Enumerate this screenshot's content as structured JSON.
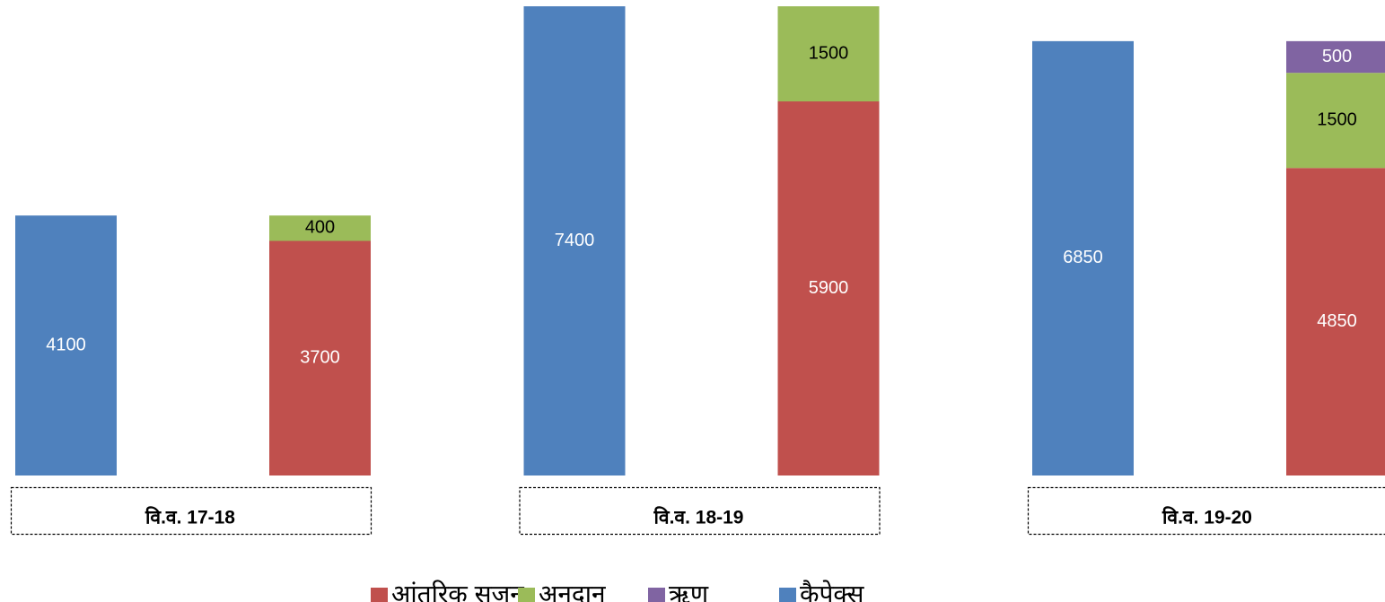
{
  "chart_data": {
    "type": "bar",
    "categories": [
      "वि.व. 17-18",
      "वि.व. 18-19",
      "वि.व. 19-20"
    ],
    "series": [
      {
        "name": "आंतरिक सृजन",
        "color": "#c0504d",
        "values": [
          3700,
          5900,
          4850
        ]
      },
      {
        "name": "अनुदान",
        "color": "#9bbb59",
        "values": [
          400,
          1500,
          1500
        ]
      },
      {
        "name": "ऋण",
        "color": "#8064a2",
        "values": [
          null,
          null,
          500
        ]
      },
      {
        "name": "कैपेक्स",
        "color": "#4f81bd",
        "values": [
          4100,
          7400,
          6850
        ]
      }
    ],
    "ylim": [
      0,
      7400
    ],
    "legend": "bottom"
  }
}
